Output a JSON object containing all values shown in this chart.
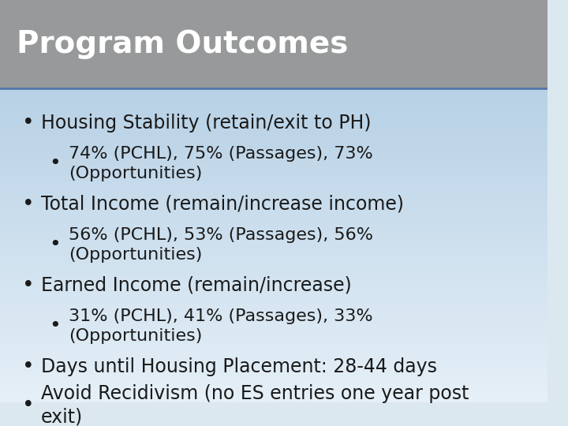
{
  "title": "Program Outcomes",
  "title_fontsize": 28,
  "title_color": "#ffffff",
  "title_bg_top": "#7a8a9a",
  "title_bg_bottom": "#4a6070",
  "body_bg_top": "#c8d8e8",
  "body_bg_bottom": "#e8eff5",
  "bullet_color": "#1a1a2e",
  "bullet_fontsize": 17,
  "sub_bullet_fontsize": 16,
  "bullets": [
    {
      "level": 1,
      "text": "Housing Stability (retain/exit to PH)"
    },
    {
      "level": 2,
      "text": "74% (PCHL), 75% (Passages), 73%\n(Opportunities)"
    },
    {
      "level": 1,
      "text": "Total Income (remain/increase income)"
    },
    {
      "level": 2,
      "text": "56% (PCHL), 53% (Passages), 56%\n(Opportunities)"
    },
    {
      "level": 1,
      "text": "Earned Income (remain/increase)"
    },
    {
      "level": 2,
      "text": "31% (PCHL), 41% (Passages), 33%\n(Opportunities)"
    },
    {
      "level": 1,
      "text": "Days until Housing Placement: 28-44 days"
    },
    {
      "level": 1,
      "text": "Avoid Recidivism (no ES entries one year post\nexit)"
    }
  ]
}
